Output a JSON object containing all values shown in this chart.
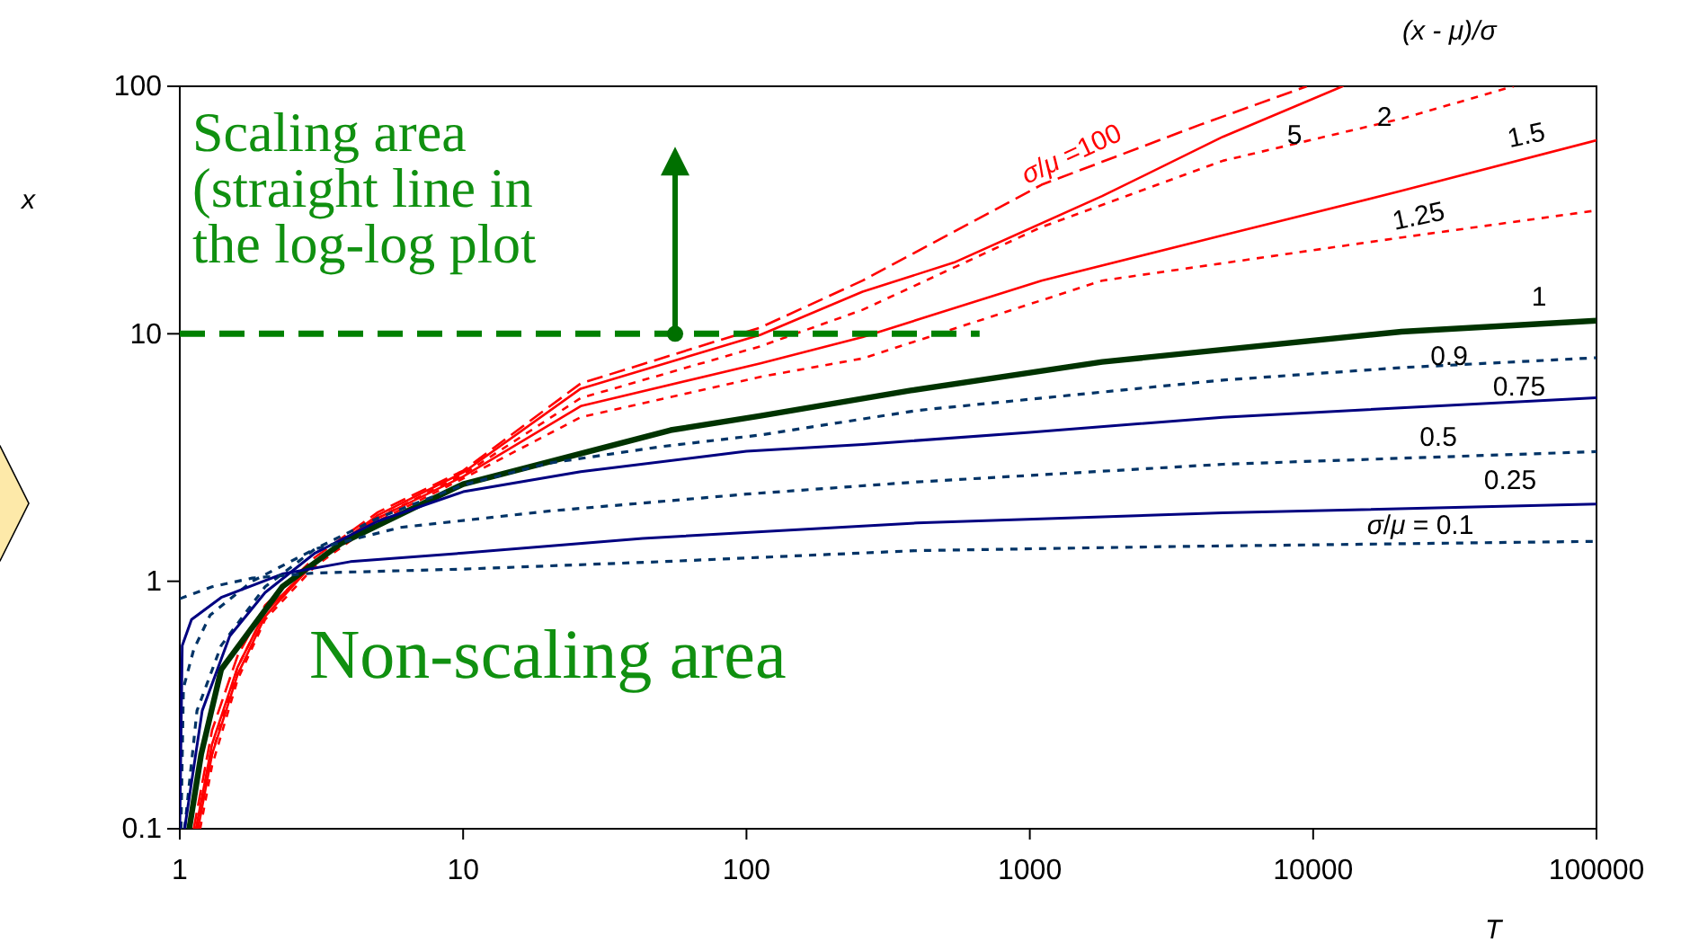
{
  "chart_data": {
    "type": "line",
    "xlabel": "T",
    "ylabel": "x",
    "log": "xy",
    "grid": false,
    "marker": "none",
    "xlim": [
      1,
      100000
    ],
    "xticks": [
      1,
      10,
      100,
      1000,
      10000,
      100000
    ],
    "ylim": [
      0.1,
      100
    ],
    "yticks": [
      0.1,
      1,
      10,
      100
    ],
    "annotations": [
      "(x - μ)/σ",
      "Scaling area\n(straight line in\nthe log-log plot",
      "Non-scaling area"
    ],
    "series": [
      {
        "name": "σ/μ =100",
        "color": "#ff0000",
        "line_style": "dashed",
        "x": [
          1.12,
          1.3,
          1.6,
          2,
          3,
          5,
          10,
          26,
          112,
          257,
          1100,
          4000,
          9500
        ],
        "values": [
          0.1,
          0.25,
          0.5,
          0.8,
          1.25,
          1.9,
          2.8,
          6.3,
          10.6,
          16.4,
          40,
          70,
          100
        ]
      },
      {
        "name": "5",
        "color": "#ff0000",
        "line_style": "solid",
        "x": [
          1.14,
          1.3,
          1.6,
          2,
          3,
          5,
          10,
          26,
          112,
          257,
          540,
          1800,
          4800,
          12700
        ],
        "values": [
          0.1,
          0.22,
          0.45,
          0.75,
          1.2,
          1.85,
          2.75,
          6.0,
          9.9,
          14.8,
          19.4,
          36,
          62.5,
          100
        ]
      },
      {
        "name": "2",
        "color": "#ff0000",
        "line_style": "dotted",
        "x": [
          1.15,
          1.3,
          1.6,
          2,
          3,
          5,
          10,
          26,
          112,
          257,
          1100,
          4800,
          20500,
          51000
        ],
        "values": [
          0.1,
          0.2,
          0.45,
          0.75,
          1.2,
          1.8,
          2.7,
          5.5,
          8.9,
          12.5,
          27,
          50,
          74,
          100
        ]
      },
      {
        "name": "1.5",
        "color": "#ff0000",
        "line_style": "solid",
        "x": [
          1.16,
          1.3,
          1.6,
          2,
          3,
          5,
          10,
          26,
          112,
          257,
          1100,
          4800,
          20500,
          100000
        ],
        "values": [
          0.1,
          0.2,
          0.42,
          0.72,
          1.2,
          1.8,
          2.65,
          5.1,
          7.6,
          9.7,
          16.4,
          25,
          37.8,
          60.5
        ]
      },
      {
        "name": "1.25",
        "color": "#ff0000",
        "line_style": "dotted",
        "x": [
          1.18,
          1.3,
          1.6,
          2,
          3,
          5,
          10,
          26,
          112,
          257,
          1800,
          20500,
          100000
        ],
        "values": [
          0.1,
          0.18,
          0.4,
          0.7,
          1.15,
          1.75,
          2.6,
          4.6,
          6.7,
          7.95,
          16.4,
          24.5,
          31.5
        ]
      },
      {
        "name": "1",
        "color": "#003300",
        "line_style": "solid",
        "x": [
          1.08,
          1.19,
          1.4,
          2.3,
          3.7,
          6,
          10,
          26,
          54,
          112,
          380,
          1800,
          20500,
          100000
        ],
        "values": [
          0.1,
          0.2,
          0.44,
          0.95,
          1.42,
          1.86,
          2.47,
          3.28,
          4.08,
          4.66,
          5.9,
          7.7,
          10.2,
          11.3
        ]
      },
      {
        "name": "0.9",
        "color": "#003366",
        "line_style": "dotted",
        "x": [
          1.04,
          1.15,
          1.4,
          2,
          3,
          5,
          10,
          20,
          50,
          112,
          400,
          4800,
          20500,
          100000
        ],
        "values": [
          0.1,
          0.3,
          0.55,
          0.95,
          1.35,
          1.8,
          2.45,
          3.0,
          3.5,
          3.9,
          4.9,
          6.5,
          7.3,
          8.0
        ]
      },
      {
        "name": "0.75",
        "color": "#000080",
        "line_style": "solid",
        "x": [
          1.04,
          1.2,
          1.5,
          2,
          3,
          5,
          10,
          26,
          100,
          257,
          1000,
          4800,
          100000
        ],
        "values": [
          0.1,
          0.3,
          0.6,
          0.9,
          1.3,
          1.75,
          2.3,
          2.77,
          3.35,
          3.57,
          4.0,
          4.6,
          5.52
        ]
      },
      {
        "name": "0.5",
        "color": "#003366",
        "line_style": "dotted",
        "x": [
          1.01,
          1.03,
          1.12,
          1.28,
          1.8,
          3,
          6,
          20,
          100,
          400,
          4800,
          100000
        ],
        "values": [
          0.1,
          0.37,
          0.53,
          0.73,
          1.0,
          1.35,
          1.65,
          1.92,
          2.25,
          2.52,
          2.97,
          3.34
        ]
      },
      {
        "name": "0.25",
        "color": "#000080",
        "line_style": "solid",
        "x": [
          1,
          1.02,
          1.1,
          1.4,
          2.3,
          4,
          10,
          43,
          400,
          4800,
          100000
        ],
        "values": [
          0.1,
          0.55,
          0.7,
          0.86,
          1.07,
          1.2,
          1.3,
          1.49,
          1.72,
          1.89,
          2.05
        ]
      },
      {
        "name": "σ/μ = 0.1",
        "color": "#003366",
        "line_style": "dotted",
        "x": [
          1,
          1.3,
          1.8,
          3,
          10,
          50,
          400,
          3000,
          100000
        ],
        "values": [
          0.85,
          0.95,
          1.03,
          1.08,
          1.12,
          1.2,
          1.33,
          1.38,
          1.45
        ]
      },
      {
        "color": "#008000",
        "line_style": "dashed",
        "x": [
          1,
          665
        ],
        "values": [
          10,
          10
        ]
      }
    ]
  }
}
